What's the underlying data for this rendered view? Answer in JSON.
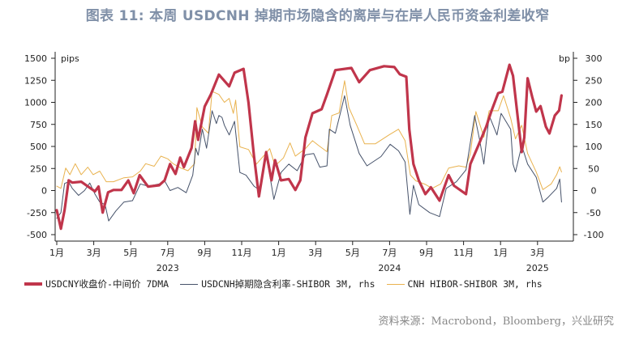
{
  "title": "图表 11: 本周 USDCNH 掉期市场隐含的离岸与在岸人民币资金利差收窄",
  "source": "资料来源：Macrobond，Bloomberg，兴业研究",
  "chart_data": {
    "type": "line",
    "title": "图表 11: 本周 USDCNH 掉期市场隐含的离岸与在岸人民币资金利差收窄",
    "left_axis": {
      "unit": "pips",
      "range": [
        -500,
        1500
      ],
      "ticks": [
        -500,
        -250,
        0,
        250,
        500,
        750,
        1000,
        1250,
        1500
      ]
    },
    "right_axis": {
      "unit": "bp",
      "range": [
        -100,
        300
      ],
      "ticks": [
        -100,
        -50,
        0,
        50,
        100,
        150,
        200,
        250,
        300
      ]
    },
    "x_axis": {
      "range": [
        "2023-01-01",
        "2025-04-30"
      ],
      "month_ticks": [
        {
          "date": "2023-01-01",
          "label": "1月"
        },
        {
          "date": "2023-03-01",
          "label": "3月"
        },
        {
          "date": "2023-05-01",
          "label": "5月"
        },
        {
          "date": "2023-07-01",
          "label": "7月"
        },
        {
          "date": "2023-09-01",
          "label": "9月"
        },
        {
          "date": "2023-11-01",
          "label": "11月"
        },
        {
          "date": "2024-01-01",
          "label": "1月"
        },
        {
          "date": "2024-03-01",
          "label": "3月"
        },
        {
          "date": "2024-05-01",
          "label": "5月"
        },
        {
          "date": "2024-07-01",
          "label": "7月"
        },
        {
          "date": "2024-09-01",
          "label": "9月"
        },
        {
          "date": "2024-11-01",
          "label": "11月"
        },
        {
          "date": "2025-01-01",
          "label": "1月"
        },
        {
          "date": "2025-03-01",
          "label": "3月"
        }
      ],
      "year_labels": [
        {
          "label": "2023",
          "date": "2023-07-01"
        },
        {
          "label": "2024",
          "date": "2024-07-01"
        },
        {
          "label": "2025",
          "date": "2025-03-01"
        }
      ]
    },
    "grid": false,
    "legend_position": "bottom",
    "series": [
      {
        "name": "USDCNY收盘价-中间价 7DMA",
        "axis": "left",
        "color": "#c0354b",
        "points": [
          [
            "2023-01-01",
            -223
          ],
          [
            "2023-01-08",
            -433
          ],
          [
            "2023-01-14",
            -223
          ],
          [
            "2023-01-21",
            116
          ],
          [
            "2023-01-27",
            90
          ],
          [
            "2023-02-10",
            100
          ],
          [
            "2023-02-19",
            52
          ],
          [
            "2023-03-03",
            -10
          ],
          [
            "2023-03-09",
            45
          ],
          [
            "2023-03-16",
            -250
          ],
          [
            "2023-03-25",
            -20
          ],
          [
            "2023-04-03",
            6
          ],
          [
            "2023-04-16",
            6
          ],
          [
            "2023-04-27",
            115
          ],
          [
            "2023-05-06",
            -30
          ],
          [
            "2023-05-16",
            174
          ],
          [
            "2023-05-30",
            45
          ],
          [
            "2023-06-17",
            60
          ],
          [
            "2023-06-26",
            116
          ],
          [
            "2023-07-05",
            300
          ],
          [
            "2023-07-14",
            188
          ],
          [
            "2023-07-22",
            373
          ],
          [
            "2023-07-28",
            265
          ],
          [
            "2023-08-10",
            483
          ],
          [
            "2023-08-16",
            785
          ],
          [
            "2023-08-21",
            574
          ],
          [
            "2023-09-01",
            953
          ],
          [
            "2023-09-11",
            1090
          ],
          [
            "2023-09-24",
            1315
          ],
          [
            "2023-10-11",
            1182
          ],
          [
            "2023-10-20",
            1336
          ],
          [
            "2023-11-04",
            1380
          ],
          [
            "2023-11-12",
            998
          ],
          [
            "2023-11-21",
            390
          ],
          [
            "2023-11-29",
            -67
          ],
          [
            "2023-12-11",
            436
          ],
          [
            "2023-12-20",
            116
          ],
          [
            "2023-12-26",
            345
          ],
          [
            "2024-01-05",
            116
          ],
          [
            "2024-01-18",
            130
          ],
          [
            "2024-01-29",
            6
          ],
          [
            "2024-02-06",
            116
          ],
          [
            "2024-02-14",
            602
          ],
          [
            "2024-02-25",
            876
          ],
          [
            "2024-03-11",
            922
          ],
          [
            "2024-03-20",
            1090
          ],
          [
            "2024-04-03",
            1365
          ],
          [
            "2024-04-29",
            1390
          ],
          [
            "2024-05-12",
            1228
          ],
          [
            "2024-05-30",
            1365
          ],
          [
            "2024-06-22",
            1410
          ],
          [
            "2024-07-09",
            1400
          ],
          [
            "2024-07-18",
            1319
          ],
          [
            "2024-07-29",
            1290
          ],
          [
            "2024-08-03",
            693
          ],
          [
            "2024-08-10",
            300
          ],
          [
            "2024-08-19",
            116
          ],
          [
            "2024-08-30",
            -40
          ],
          [
            "2024-09-08",
            37
          ],
          [
            "2024-09-22",
            -115
          ],
          [
            "2024-10-07",
            174
          ],
          [
            "2024-10-16",
            55
          ],
          [
            "2024-11-05",
            -40
          ],
          [
            "2024-11-12",
            300
          ],
          [
            "2024-11-25",
            510
          ],
          [
            "2024-12-08",
            724
          ],
          [
            "2024-12-17",
            907
          ],
          [
            "2024-12-28",
            1105
          ],
          [
            "2025-01-04",
            1120
          ],
          [
            "2025-01-16",
            1426
          ],
          [
            "2025-01-22",
            1300
          ],
          [
            "2025-02-05",
            436
          ],
          [
            "2025-02-09",
            602
          ],
          [
            "2025-02-14",
            1273
          ],
          [
            "2025-02-21",
            1060
          ],
          [
            "2025-02-27",
            895
          ],
          [
            "2025-03-06",
            957
          ],
          [
            "2025-03-15",
            724
          ],
          [
            "2025-03-21",
            648
          ],
          [
            "2025-03-30",
            850
          ],
          [
            "2025-04-06",
            907
          ],
          [
            "2025-04-10",
            1078
          ]
        ]
      },
      {
        "name": "USDCNH掉期隐含利率-SHIBOR 3M, rhs",
        "axis": "right",
        "color": "#46526a",
        "points": [
          [
            "2023-01-01",
            -63
          ],
          [
            "2023-01-08",
            -50
          ],
          [
            "2023-01-14",
            16
          ],
          [
            "2023-01-21",
            20
          ],
          [
            "2023-01-27",
            5
          ],
          [
            "2023-02-06",
            -11
          ],
          [
            "2023-02-15",
            0
          ],
          [
            "2023-02-23",
            17
          ],
          [
            "2023-03-03",
            -8
          ],
          [
            "2023-03-11",
            -26
          ],
          [
            "2023-03-20",
            -32
          ],
          [
            "2023-03-26",
            -69
          ],
          [
            "2023-04-07",
            -46
          ],
          [
            "2023-04-20",
            -26
          ],
          [
            "2023-05-04",
            -23
          ],
          [
            "2023-05-17",
            15
          ],
          [
            "2023-05-30",
            10
          ],
          [
            "2023-06-18",
            15
          ],
          [
            "2023-06-26",
            22
          ],
          [
            "2023-07-05",
            0
          ],
          [
            "2023-07-18",
            7
          ],
          [
            "2023-08-01",
            -5
          ],
          [
            "2023-08-12",
            35
          ],
          [
            "2023-08-17",
            96
          ],
          [
            "2023-08-21",
            80
          ],
          [
            "2023-08-28",
            139
          ],
          [
            "2023-09-04",
            96
          ],
          [
            "2023-09-13",
            181
          ],
          [
            "2023-09-20",
            152
          ],
          [
            "2023-09-24",
            170
          ],
          [
            "2023-09-29",
            166
          ],
          [
            "2023-10-03",
            148
          ],
          [
            "2023-10-11",
            126
          ],
          [
            "2023-10-20",
            157
          ],
          [
            "2023-10-29",
            41
          ],
          [
            "2023-11-08",
            35
          ],
          [
            "2023-11-21",
            10
          ],
          [
            "2023-11-29",
            2
          ],
          [
            "2023-12-11",
            78
          ],
          [
            "2023-12-17",
            35
          ],
          [
            "2023-12-24",
            -20
          ],
          [
            "2024-01-05",
            41
          ],
          [
            "2024-01-18",
            60
          ],
          [
            "2024-02-01",
            45
          ],
          [
            "2024-02-14",
            81
          ],
          [
            "2024-02-27",
            84
          ],
          [
            "2024-03-08",
            53
          ],
          [
            "2024-03-20",
            56
          ],
          [
            "2024-03-24",
            139
          ],
          [
            "2024-04-03",
            130
          ],
          [
            "2024-04-11",
            175
          ],
          [
            "2024-04-18",
            215
          ],
          [
            "2024-04-27",
            148
          ],
          [
            "2024-05-12",
            84
          ],
          [
            "2024-05-25",
            56
          ],
          [
            "2024-06-17",
            77
          ],
          [
            "2024-07-02",
            105
          ],
          [
            "2024-07-16",
            90
          ],
          [
            "2024-07-27",
            65
          ],
          [
            "2024-08-04",
            -54
          ],
          [
            "2024-08-10",
            12
          ],
          [
            "2024-08-19",
            -32
          ],
          [
            "2024-09-06",
            -50
          ],
          [
            "2024-09-22",
            -59
          ],
          [
            "2024-10-03",
            5
          ],
          [
            "2024-10-20",
            20
          ],
          [
            "2024-11-05",
            47
          ],
          [
            "2024-11-19",
            170
          ],
          [
            "2024-11-27",
            115
          ],
          [
            "2024-12-04",
            60
          ],
          [
            "2024-12-13",
            170
          ],
          [
            "2024-12-26",
            126
          ],
          [
            "2025-01-02",
            175
          ],
          [
            "2025-01-18",
            139
          ],
          [
            "2025-01-22",
            60
          ],
          [
            "2025-01-26",
            42
          ],
          [
            "2025-02-05",
            102
          ],
          [
            "2025-02-14",
            60
          ],
          [
            "2025-02-27",
            30
          ],
          [
            "2025-03-10",
            -26
          ],
          [
            "2025-03-19",
            -15
          ],
          [
            "2025-04-02",
            5
          ],
          [
            "2025-04-07",
            26
          ],
          [
            "2025-04-10",
            -26
          ]
        ]
      },
      {
        "name": "CNH HIBOR-SHIBOR 3M, rhs",
        "axis": "right",
        "color": "#e9b24e",
        "points": [
          [
            "2023-01-01",
            10
          ],
          [
            "2023-01-08",
            5
          ],
          [
            "2023-01-16",
            51
          ],
          [
            "2023-01-23",
            36
          ],
          [
            "2023-02-01",
            61
          ],
          [
            "2023-02-10",
            36
          ],
          [
            "2023-02-20",
            53
          ],
          [
            "2023-02-28",
            36
          ],
          [
            "2023-03-11",
            44
          ],
          [
            "2023-03-22",
            20
          ],
          [
            "2023-04-03",
            20
          ],
          [
            "2023-04-20",
            29
          ],
          [
            "2023-05-04",
            31
          ],
          [
            "2023-05-17",
            44
          ],
          [
            "2023-05-26",
            61
          ],
          [
            "2023-06-09",
            55
          ],
          [
            "2023-06-20",
            78
          ],
          [
            "2023-07-01",
            72
          ],
          [
            "2023-07-10",
            61
          ],
          [
            "2023-07-23",
            51
          ],
          [
            "2023-08-04",
            45
          ],
          [
            "2023-08-15",
            61
          ],
          [
            "2023-08-19",
            188
          ],
          [
            "2023-08-28",
            144
          ],
          [
            "2023-09-07",
            130
          ],
          [
            "2023-09-13",
            225
          ],
          [
            "2023-09-24",
            218
          ],
          [
            "2023-10-03",
            200
          ],
          [
            "2023-10-11",
            209
          ],
          [
            "2023-10-18",
            175
          ],
          [
            "2023-10-22",
            205
          ],
          [
            "2023-10-29",
            99
          ],
          [
            "2023-11-12",
            93
          ],
          [
            "2023-11-25",
            60
          ],
          [
            "2023-12-09",
            82
          ],
          [
            "2023-12-17",
            95
          ],
          [
            "2023-12-26",
            56
          ],
          [
            "2024-01-09",
            74
          ],
          [
            "2024-01-20",
            108
          ],
          [
            "2024-01-29",
            78
          ],
          [
            "2024-02-14",
            95
          ],
          [
            "2024-02-25",
            113
          ],
          [
            "2024-03-06",
            102
          ],
          [
            "2024-03-20",
            88
          ],
          [
            "2024-03-28",
            170
          ],
          [
            "2024-04-09",
            176
          ],
          [
            "2024-04-18",
            249
          ],
          [
            "2024-04-25",
            188
          ],
          [
            "2024-05-08",
            148
          ],
          [
            "2024-05-21",
            106
          ],
          [
            "2024-06-08",
            106
          ],
          [
            "2024-06-30",
            126
          ],
          [
            "2024-07-16",
            139
          ],
          [
            "2024-07-27",
            113
          ],
          [
            "2024-08-05",
            35
          ],
          [
            "2024-08-14",
            22
          ],
          [
            "2024-08-30",
            14
          ],
          [
            "2024-09-10",
            5
          ],
          [
            "2024-09-24",
            15
          ],
          [
            "2024-10-07",
            51
          ],
          [
            "2024-10-24",
            56
          ],
          [
            "2024-11-05",
            53
          ],
          [
            "2024-11-12",
            84
          ],
          [
            "2024-11-21",
            179
          ],
          [
            "2024-12-04",
            121
          ],
          [
            "2024-12-13",
            181
          ],
          [
            "2024-12-28",
            181
          ],
          [
            "2025-01-06",
            215
          ],
          [
            "2025-01-18",
            164
          ],
          [
            "2025-01-26",
            117
          ],
          [
            "2025-02-05",
            148
          ],
          [
            "2025-02-14",
            84
          ],
          [
            "2025-02-27",
            42
          ],
          [
            "2025-03-10",
            2
          ],
          [
            "2025-03-24",
            15
          ],
          [
            "2025-04-02",
            36
          ],
          [
            "2025-04-07",
            54
          ],
          [
            "2025-04-10",
            42
          ]
        ]
      }
    ]
  }
}
